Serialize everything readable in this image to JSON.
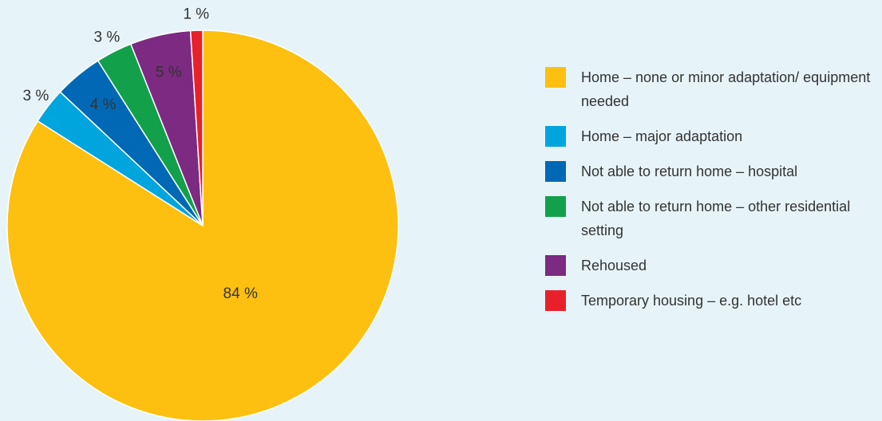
{
  "chart_data": {
    "type": "pie",
    "categories": [
      "Home – none or minor adaptation/ equipment needed",
      "Home – major adaptation",
      "Not able to return home – hospital",
      "Not able to return home – other residential setting",
      "Rehoused",
      "Temporary housing – e.g. hotel etc"
    ],
    "values": [
      84,
      3,
      4,
      3,
      5,
      1
    ],
    "value_labels": [
      "84 %",
      "3 %",
      "4 %",
      "3 %",
      "5 %",
      "1 %"
    ],
    "colors": [
      "#fdc010",
      "#00a5de",
      "#0068b4",
      "#12a04a",
      "#7c2a82",
      "#e8202a"
    ]
  }
}
